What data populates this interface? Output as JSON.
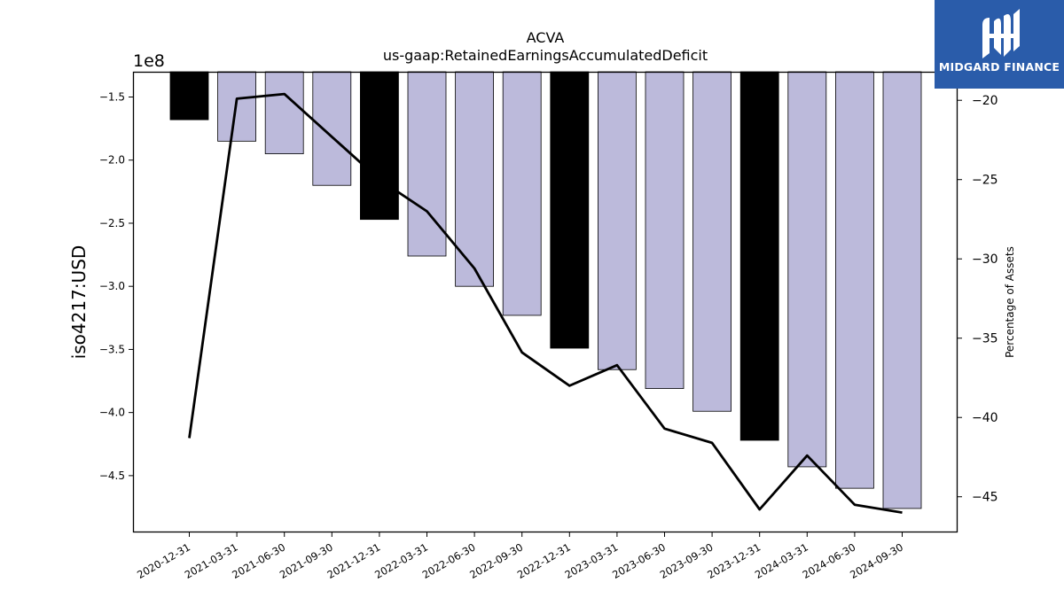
{
  "brand": {
    "name": "MIDGARD FINANCE"
  },
  "chart_data": {
    "type": "bar",
    "title": "ACVA",
    "subtitle": "us-gaap:RetainedEarningsAccumulatedDeficit",
    "ylabel": "iso4217:USD",
    "y_offset_label": "1e8",
    "y2label": "Percentage of Assets",
    "categories": [
      "2020-12-31",
      "2021-03-31",
      "2021-06-30",
      "2021-09-30",
      "2021-12-31",
      "2022-03-31",
      "2022-06-30",
      "2022-09-30",
      "2022-12-31",
      "2023-03-31",
      "2023-06-30",
      "2023-09-30",
      "2023-12-31",
      "2024-03-31",
      "2024-06-30",
      "2024-09-30"
    ],
    "series": [
      {
        "values": [
          -1.68,
          -1.85,
          -1.95,
          -2.2,
          -2.47,
          -2.76,
          -3.0,
          -3.23,
          -3.49,
          -3.66,
          -3.81,
          -3.99,
          -4.22,
          -4.43,
          -4.6,
          -4.76
        ],
        "highlight": [
          true,
          false,
          false,
          false,
          true,
          false,
          false,
          false,
          true,
          false,
          false,
          false,
          true,
          false,
          false,
          false
        ],
        "colors": {
          "highlight": "#000000",
          "normal": "#bcbadb"
        }
      },
      {
        "axis": "right",
        "type": "line",
        "color": "#000000",
        "values": [
          -41.3,
          -19.9,
          -19.6,
          -22.3,
          -25.0,
          -27.0,
          -30.6,
          -35.9,
          -38.0,
          -36.7,
          -40.7,
          -41.6,
          -45.8,
          -42.4,
          -45.5,
          -46.0
        ]
      }
    ],
    "ylim": [
      -4.95,
      -1.3
    ],
    "yticks": [
      -1.5,
      -2.0,
      -2.5,
      -3.0,
      -3.5,
      -4.0,
      -4.5
    ],
    "ytick_labels": [
      "−1.5",
      "−2.0",
      "−2.5",
      "−3.0",
      "−3.5",
      "−4.0",
      "−4.5"
    ],
    "y2lim": [
      -47.25,
      -18.2
    ],
    "y2ticks": [
      -20,
      -25,
      -30,
      -35,
      -40,
      -45
    ],
    "y2tick_labels": [
      "−20",
      "−25",
      "−30",
      "−35",
      "−40",
      "−45"
    ],
    "grid": false
  }
}
